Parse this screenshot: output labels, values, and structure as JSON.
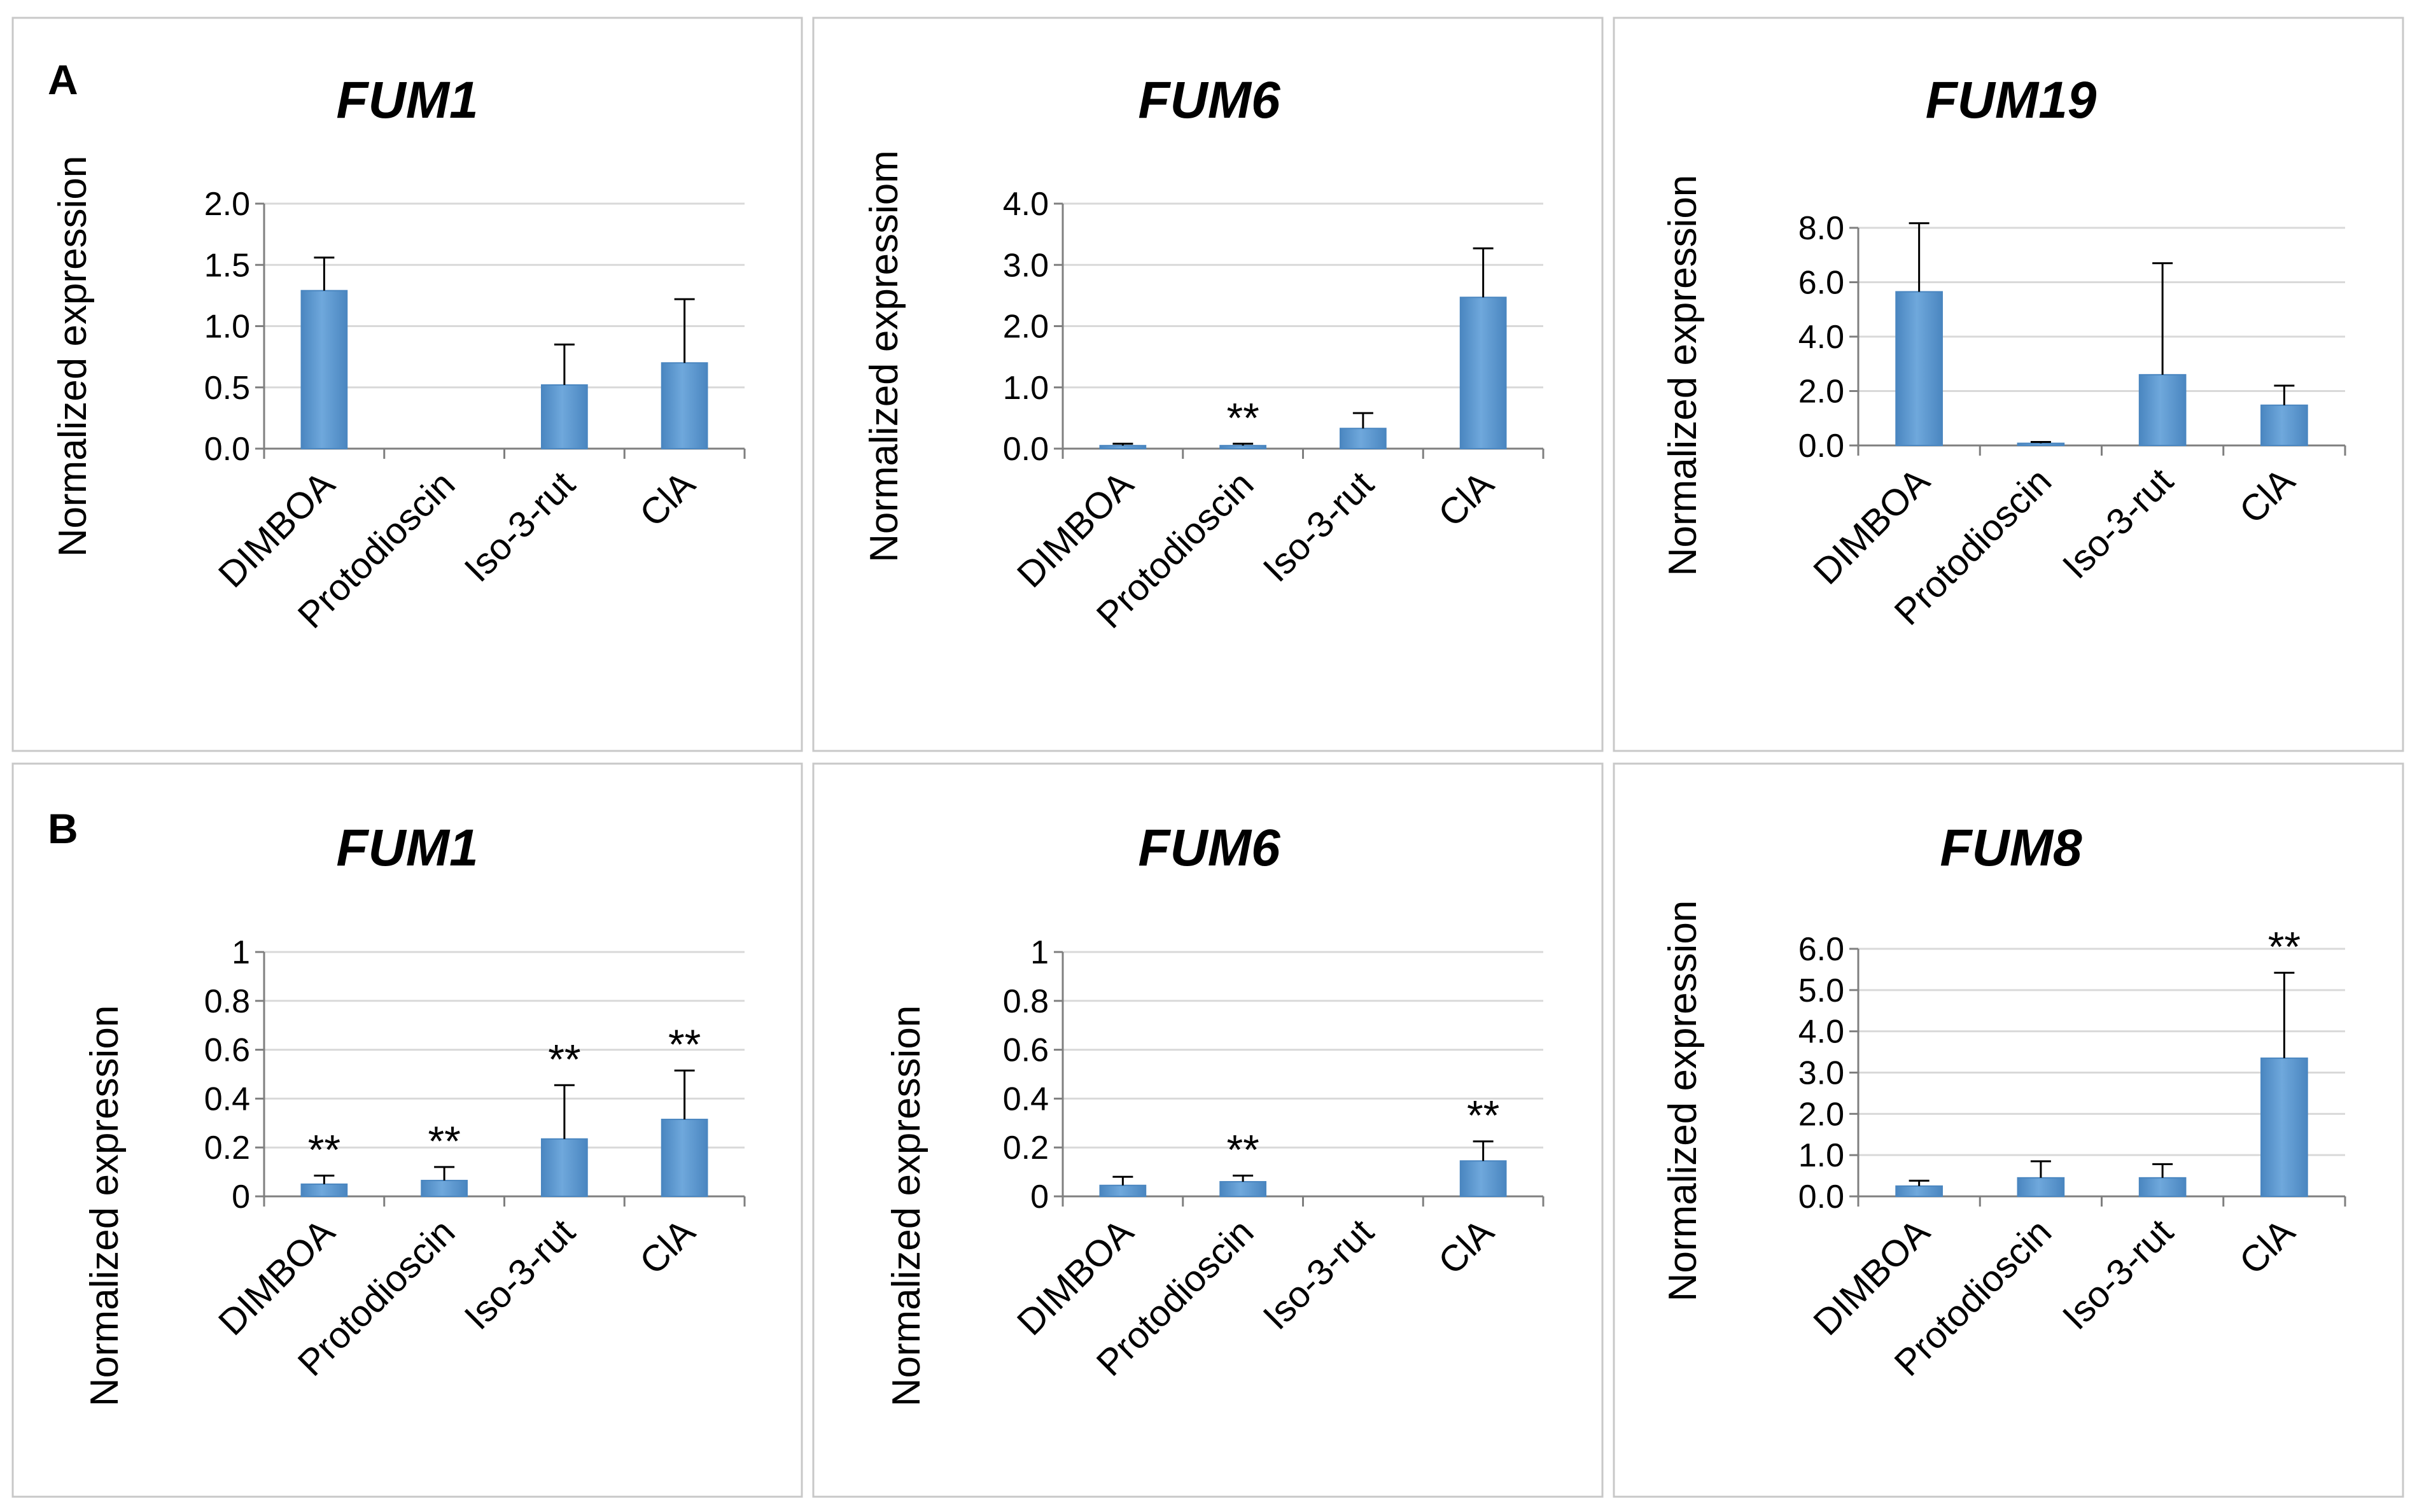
{
  "figure": {
    "panel_labels": [
      "A",
      "B"
    ]
  },
  "colors": {
    "bar_fill": "#5b9bd5",
    "bar_edge": "#4a86c0",
    "bar_highlight": "#9cc3e6",
    "gridline": "#d9d9d9",
    "axis": "#7f7f7f",
    "errorbar": "#000000",
    "panel_border": "#c8c8c8"
  },
  "chart_data": [
    {
      "type": "bar",
      "row": "A",
      "title": "FUM1",
      "xlabel": "",
      "ylabel": "Normalized expression",
      "categories": [
        "DIMBOA",
        "Protodioscin",
        "Iso-3-rut",
        "ClA"
      ],
      "values": [
        1.29,
        0,
        0.52,
        0.7
      ],
      "errors": [
        0.27,
        0,
        0.33,
        0.52
      ],
      "annotations": [
        "",
        "",
        "",
        ""
      ],
      "ylim": [
        0,
        2.0
      ],
      "yticks": [
        "0.0",
        "0.5",
        "1.0",
        "1.5",
        "2.0"
      ],
      "grid": true
    },
    {
      "type": "bar",
      "row": "A",
      "title": "FUM6",
      "xlabel": "",
      "ylabel": "Normalized expressiom",
      "categories": [
        "DIMBOA",
        "Protodioscin",
        "Iso-3-rut",
        "ClA"
      ],
      "values": [
        0.05,
        0.05,
        0.33,
        2.47
      ],
      "errors": [
        0.03,
        0.03,
        0.25,
        0.8
      ],
      "annotations": [
        "",
        "**",
        "",
        ""
      ],
      "ylim": [
        0,
        4.0
      ],
      "yticks": [
        "0.0",
        "1.0",
        "2.0",
        "3.0",
        "4.0"
      ],
      "grid": true
    },
    {
      "type": "bar",
      "row": "A",
      "title": "FUM19",
      "xlabel": "",
      "ylabel": "Normalized expression",
      "categories": [
        "DIMBOA",
        "Protodioscin",
        "Iso-3-rut",
        "ClA"
      ],
      "values": [
        5.65,
        0.08,
        2.6,
        1.48
      ],
      "errors": [
        2.52,
        0.05,
        4.1,
        0.72
      ],
      "annotations": [
        "",
        "",
        "",
        ""
      ],
      "ylim": [
        0,
        8.0
      ],
      "yticks": [
        "0.0",
        "2.0",
        "4.0",
        "6.0",
        "8.0"
      ],
      "grid": true
    },
    {
      "type": "bar",
      "row": "B",
      "title": "FUM1",
      "xlabel": "",
      "ylabel": "Normalized expression",
      "categories": [
        "DIMBOA",
        "Protodioscin",
        "Iso-3-rut",
        "ClA"
      ],
      "values": [
        0.05,
        0.065,
        0.235,
        0.315
      ],
      "errors": [
        0.035,
        0.055,
        0.22,
        0.2
      ],
      "annotations": [
        "**",
        "**",
        "**",
        "**"
      ],
      "ylim": [
        0,
        1
      ],
      "yticks": [
        "0",
        "0.2",
        "0.4",
        "0.6",
        "0.8",
        "1"
      ],
      "grid": true
    },
    {
      "type": "bar",
      "row": "B",
      "title": "FUM6",
      "xlabel": "",
      "ylabel": "Normalized expression",
      "categories": [
        "DIMBOA",
        "Protodioscin",
        "Iso-3-rut",
        "ClA"
      ],
      "values": [
        0.045,
        0.06,
        0,
        0.145
      ],
      "errors": [
        0.035,
        0.025,
        0,
        0.08
      ],
      "annotations": [
        "",
        "**",
        "",
        "**"
      ],
      "ylim": [
        0,
        1
      ],
      "yticks": [
        "0",
        "0.2",
        "0.4",
        "0.6",
        "0.8",
        "1"
      ],
      "grid": true
    },
    {
      "type": "bar",
      "row": "B",
      "title": "FUM8",
      "xlabel": "",
      "ylabel": "Normalized expression",
      "categories": [
        "DIMBOA",
        "Protodioscin",
        "Iso-3-rut",
        "ClA"
      ],
      "values": [
        0.25,
        0.45,
        0.45,
        3.35
      ],
      "errors": [
        0.13,
        0.4,
        0.33,
        2.07
      ],
      "annotations": [
        "",
        "",
        "",
        "**"
      ],
      "ylim": [
        0,
        6.0
      ],
      "yticks": [
        "0.0",
        "1.0",
        "2.0",
        "3.0",
        "4.0",
        "5.0",
        "6.0"
      ],
      "grid": true
    }
  ]
}
